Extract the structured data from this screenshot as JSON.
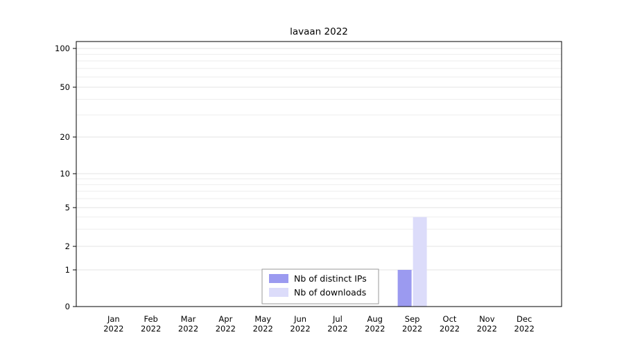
{
  "chart_data": {
    "type": "bar",
    "title": "lavaan 2022",
    "x_categories": [
      "Jan 2022",
      "Feb 2022",
      "Mar 2022",
      "Apr 2022",
      "May 2022",
      "Jun 2022",
      "Jul 2022",
      "Aug 2022",
      "Sep 2022",
      "Oct 2022",
      "Nov 2022",
      "Dec 2022"
    ],
    "y_ticks": [
      0,
      1,
      2,
      5,
      10,
      20,
      50,
      100
    ],
    "y_scale": "log-like",
    "ylim": [
      0,
      100
    ],
    "grid": true,
    "legend_position": "bottom-center",
    "series": [
      {
        "name": "Nb of distinct IPs",
        "color": "#9b9af0",
        "values": [
          0,
          0,
          0,
          0,
          0,
          0,
          0,
          0,
          1,
          0,
          0,
          0
        ]
      },
      {
        "name": "Nb of downloads",
        "color": "#dcdcfa",
        "values": [
          0,
          0,
          0,
          0,
          0,
          0,
          0,
          0,
          4,
          0,
          0,
          0
        ]
      }
    ]
  }
}
